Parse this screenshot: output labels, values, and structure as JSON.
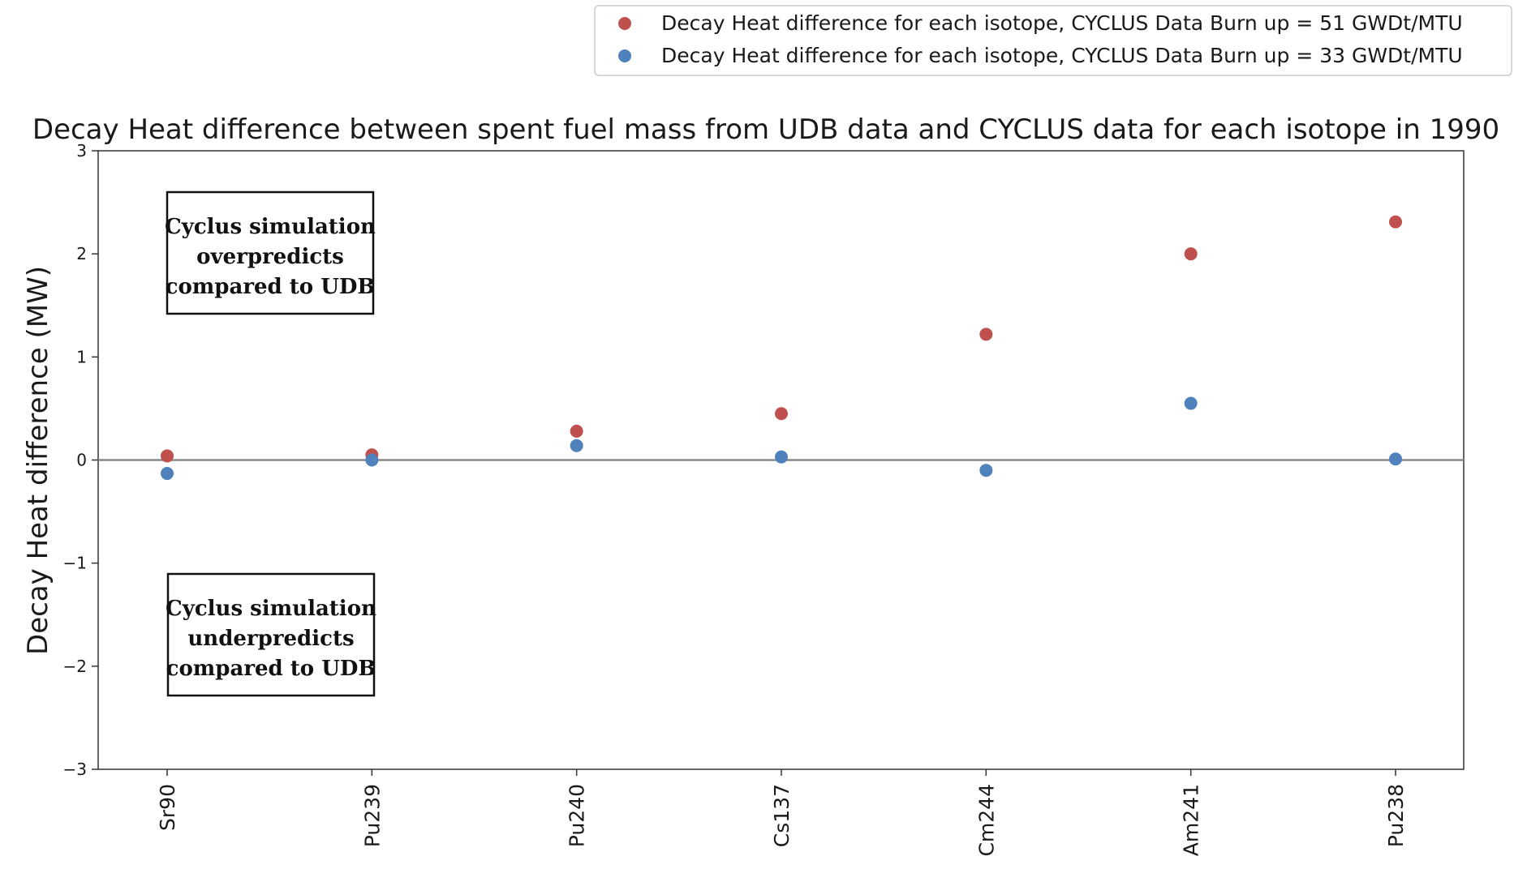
{
  "chart_data": {
    "type": "scatter",
    "title": "Decay Heat difference between spent fuel mass from UDB data and CYCLUS data for each isotope in 1990",
    "xlabel": "",
    "ylabel": "Decay Heat difference (MW)",
    "categories": [
      "Sr90",
      "Pu239",
      "Pu240",
      "Cs137",
      "Cm244",
      "Am241",
      "Pu238"
    ],
    "ylim": [
      -3,
      3
    ],
    "yticks": [
      -3,
      -2,
      -1,
      0,
      1,
      2,
      3
    ],
    "ytick_labels": [
      "−3",
      "−2",
      "−1",
      "0",
      "1",
      "2",
      "3"
    ],
    "legend_position": "top-right",
    "zero_line": true,
    "grid": false,
    "series": [
      {
        "name": "Decay Heat difference for each isotope, CYCLUS Data Burn up = 51 GWDt/MTU",
        "color": "#c0504d",
        "values": [
          0.04,
          0.05,
          0.28,
          0.45,
          1.22,
          2.0,
          2.31
        ]
      },
      {
        "name": "Decay Heat difference for each isotope, CYCLUS Data Burn up = 33 GWDt/MTU",
        "color": "#4f81bd",
        "values": [
          -0.13,
          0.0,
          0.14,
          0.03,
          -0.1,
          0.55,
          0.01
        ]
      }
    ],
    "annotations": [
      {
        "id": "over",
        "lines": [
          "Cyclus simulation",
          "overpredicts",
          "compared to UDB"
        ]
      },
      {
        "id": "under",
        "lines": [
          "Cyclus simulation",
          "underpredicts",
          "compared to UDB"
        ]
      }
    ]
  }
}
